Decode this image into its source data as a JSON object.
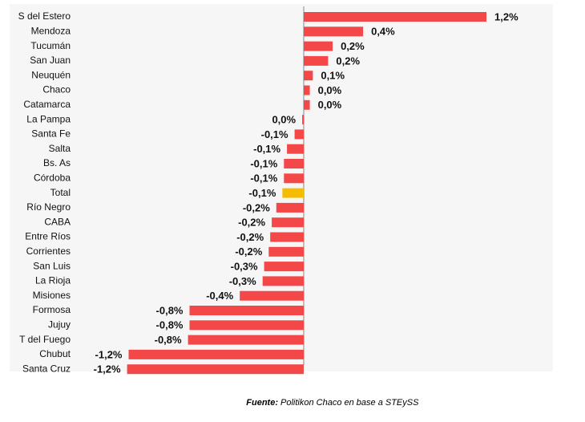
{
  "chart_data": {
    "type": "bar",
    "orientation": "horizontal",
    "categories": [
      "S del Estero",
      "Mendoza",
      "Tucumán",
      "San Juan",
      "Neuquén",
      "Chaco",
      "Catamarca",
      "La Pampa",
      "Santa Fe",
      "Salta",
      "Bs. As",
      "Córdoba",
      "Total",
      "Río Negro",
      "CABA",
      "Entre Ríos",
      "Corrientes",
      "San Luis",
      "La Rioja",
      "Misiones",
      "Formosa",
      "Jujuy",
      "T del Fuego",
      "Chubut",
      "Santa Cruz"
    ],
    "values": [
      1.2,
      0.39,
      0.19,
      0.16,
      0.06,
      0.04,
      0.04,
      -0.01,
      -0.06,
      -0.11,
      -0.13,
      -0.13,
      -0.14,
      -0.18,
      -0.21,
      -0.22,
      -0.23,
      -0.26,
      -0.27,
      -0.42,
      -0.75,
      -0.75,
      -0.76,
      -1.15,
      -1.16
    ],
    "value_labels": [
      "1,2%",
      "0,4%",
      "0,2%",
      "0,2%",
      "0,1%",
      "0,0%",
      "0,0%",
      "0,0%",
      "-0,1%",
      "-0,1%",
      "-0,1%",
      "-0,1%",
      "-0,1%",
      "-0,2%",
      "-0,2%",
      "-0,2%",
      "-0,2%",
      "-0,3%",
      "-0,3%",
      "-0,4%",
      "-0,8%",
      "-0,8%",
      "-0,8%",
      "-1,2%",
      "-1,2%"
    ],
    "colors": [
      "#f44848",
      "#f44848",
      "#f44848",
      "#f44848",
      "#f44848",
      "#f44848",
      "#f44848",
      "#f44848",
      "#f44848",
      "#f44848",
      "#f44848",
      "#f44848",
      "#f5bd02",
      "#f44848",
      "#f44848",
      "#f44848",
      "#f44848",
      "#f44848",
      "#f44848",
      "#f44848",
      "#f44848",
      "#f44848",
      "#f44848",
      "#f44848",
      "#f44848"
    ],
    "source": {
      "label": "Fuente:",
      "text": "Politikon Chaco en base a STEySS"
    }
  }
}
